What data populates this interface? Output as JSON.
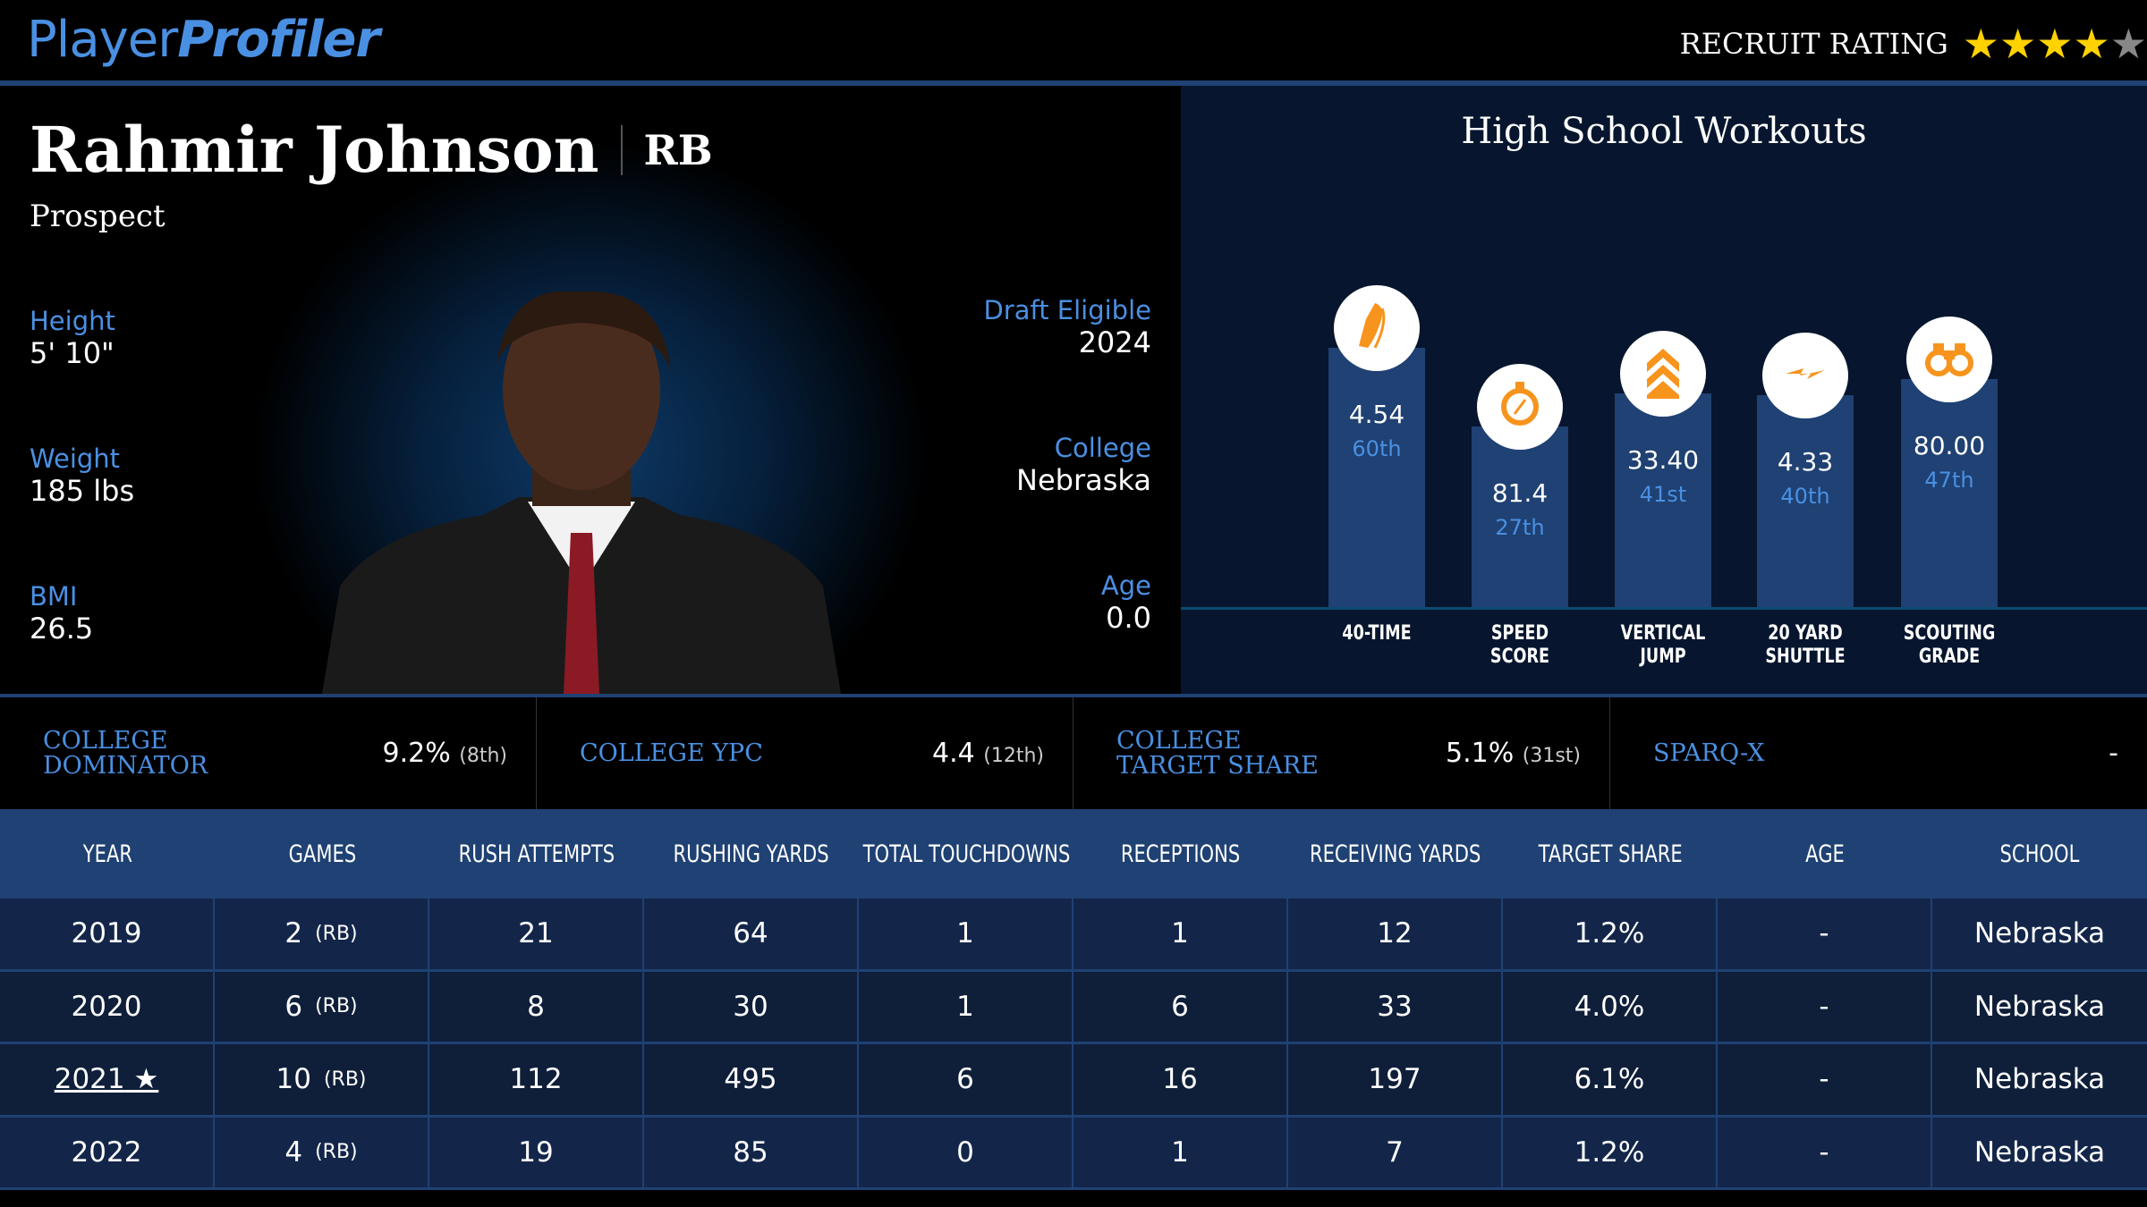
{
  "header": {
    "logo_plain": "Player",
    "logo_italic": "Profiler",
    "recruit_label": "RECRUIT RATING",
    "recruit_stars": 4,
    "recruit_max": 5,
    "star_color": "#ffd200",
    "star_off_color": "#888888"
  },
  "player": {
    "name": "Rahmir Johnson",
    "position": "RB",
    "status": "Prospect",
    "height_label": "Height",
    "height": "5' 10\"",
    "weight_label": "Weight",
    "weight": "185 lbs",
    "bmi_label": "BMI",
    "bmi": "26.5",
    "draft_label": "Draft Eligible",
    "draft": "2024",
    "college_label": "College",
    "college": "Nebraska",
    "age_label": "Age",
    "age": "0.0"
  },
  "workouts": {
    "title": "High School Workouts",
    "items": [
      {
        "value": "4.54",
        "pct": "60th",
        "percentile": 60,
        "label1": "40-TIME",
        "label2": "",
        "icon": "running-shoe-icon"
      },
      {
        "value": "81.4",
        "pct": "27th",
        "percentile": 27,
        "label1": "SPEED",
        "label2": "SCORE",
        "icon": "stopwatch-icon"
      },
      {
        "value": "33.40",
        "pct": "41st",
        "percentile": 41,
        "label1": "VERTICAL",
        "label2": "JUMP",
        "icon": "chevrons-up-icon"
      },
      {
        "value": "4.33",
        "pct": "40th",
        "percentile": 40,
        "label1": "20 YARD",
        "label2": "SHUTTLE",
        "icon": "lightning-icon"
      },
      {
        "value": "80.00",
        "pct": "47th",
        "percentile": 47,
        "label1": "SCOUTING",
        "label2": "GRADE",
        "icon": "binoculars-icon"
      }
    ]
  },
  "college_stats": [
    {
      "label": "COLLEGE DOMINATOR",
      "value": "9.2%",
      "rank": "(8th)"
    },
    {
      "label": "COLLEGE YPC",
      "value": "4.4",
      "rank": "(12th)"
    },
    {
      "label": "COLLEGE TARGET SHARE",
      "value": "5.1%",
      "rank": "(31st)"
    },
    {
      "label": "SPARQ-X",
      "value": "-",
      "rank": ""
    }
  ],
  "table": {
    "headers": [
      "YEAR",
      "GAMES",
      "RUSH ATTEMPTS",
      "RUSHING YARDS",
      "TOTAL TOUCHDOWNS",
      "RECEPTIONS",
      "RECEIVING YARDS",
      "TARGET SHARE",
      "AGE",
      "SCHOOL"
    ],
    "rows": [
      {
        "year": "2019",
        "star": "",
        "games": "2",
        "pos": "(RB)",
        "cells": [
          "21",
          "64",
          "1",
          "1",
          "12",
          "1.2%",
          "-",
          "Nebraska"
        ]
      },
      {
        "year": "2020",
        "star": "",
        "games": "6",
        "pos": "(RB)",
        "cells": [
          "8",
          "30",
          "1",
          "6",
          "33",
          "4.0%",
          "-",
          "Nebraska"
        ]
      },
      {
        "year": "2021",
        "star": "★",
        "games": "10",
        "pos": "(RB)",
        "cells": [
          "112",
          "495",
          "6",
          "16",
          "197",
          "6.1%",
          "-",
          "Nebraska"
        ]
      },
      {
        "year": "2022",
        "star": "",
        "games": "4",
        "pos": "(RB)",
        "cells": [
          "19",
          "85",
          "0",
          "1",
          "7",
          "1.2%",
          "-",
          "Nebraska"
        ]
      }
    ]
  }
}
